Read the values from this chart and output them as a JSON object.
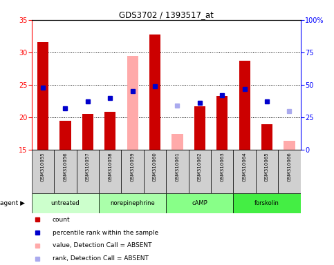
{
  "title": "GDS3702 / 1393517_at",
  "samples": [
    "GSM310055",
    "GSM310056",
    "GSM310057",
    "GSM310058",
    "GSM310059",
    "GSM310060",
    "GSM310061",
    "GSM310062",
    "GSM310063",
    "GSM310064",
    "GSM310065",
    "GSM310066"
  ],
  "group_defs": [
    {
      "name": "untreated",
      "indices": [
        0,
        1,
        2
      ],
      "color": "#ccffcc"
    },
    {
      "name": "norepinephrine",
      "indices": [
        3,
        4,
        5
      ],
      "color": "#aaffaa"
    },
    {
      "name": "cAMP",
      "indices": [
        6,
        7,
        8
      ],
      "color": "#88ff88"
    },
    {
      "name": "forskolin",
      "indices": [
        9,
        10,
        11
      ],
      "color": "#44ee44"
    }
  ],
  "red_bars": [
    31.6,
    19.5,
    20.5,
    20.8,
    null,
    32.7,
    null,
    21.7,
    23.3,
    28.7,
    18.9,
    null
  ],
  "pink_bars": [
    null,
    null,
    null,
    null,
    29.4,
    null,
    17.4,
    null,
    null,
    null,
    null,
    16.4
  ],
  "blue_squares_pct": [
    48,
    32,
    37,
    40,
    45,
    49,
    null,
    36,
    42,
    47,
    37,
    null
  ],
  "lightblue_squares_pct": [
    null,
    null,
    null,
    null,
    null,
    null,
    34,
    null,
    null,
    null,
    null,
    30
  ],
  "ylim_left": [
    15,
    35
  ],
  "ylim_right": [
    0,
    100
  ],
  "yticks_left": [
    15,
    20,
    25,
    30,
    35
  ],
  "yticks_right": [
    0,
    25,
    50,
    75,
    100
  ],
  "ytick_labels_right": [
    "0",
    "25",
    "50",
    "75",
    "100%"
  ],
  "bar_width": 0.5,
  "red_color": "#cc0000",
  "pink_color": "#ffaaaa",
  "blue_color": "#0000cc",
  "lightblue_color": "#aaaaee",
  "sample_row_color": "#d0d0d0",
  "plot_bg": "#ffffff",
  "gridline_ticks": [
    20,
    25,
    30
  ]
}
